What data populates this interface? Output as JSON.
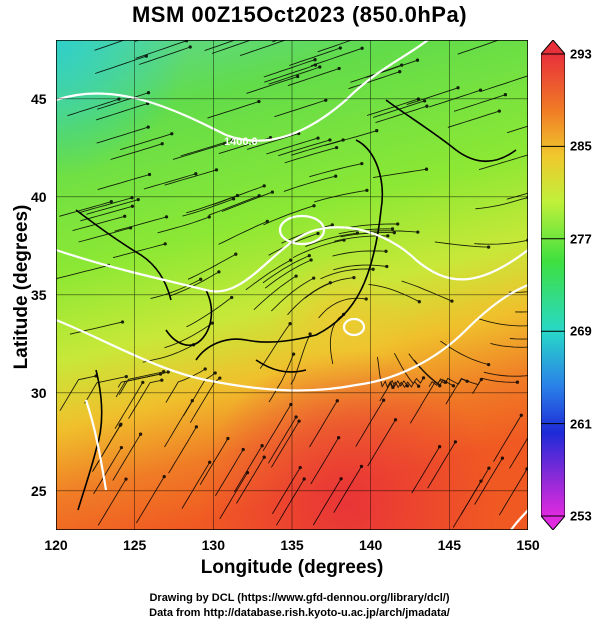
{
  "title": "MSM 00Z15Oct2023 (850.0hPa)",
  "map": {
    "x_axis_label": "Longitude (degrees)",
    "y_axis_label": "Latitude  (degrees)",
    "lon_range": [
      120,
      150
    ],
    "lat_range": [
      23,
      48
    ],
    "lon_ticks": [
      {
        "value": 120,
        "label": "120"
      },
      {
        "value": 125,
        "label": "125"
      },
      {
        "value": 130,
        "label": "130"
      },
      {
        "value": 135,
        "label": "135"
      },
      {
        "value": 140,
        "label": "140"
      },
      {
        "value": 145,
        "label": "145"
      },
      {
        "value": 150,
        "label": "150"
      }
    ],
    "lat_ticks": [
      {
        "value": 25,
        "label": "25"
      },
      {
        "value": 30,
        "label": "30"
      },
      {
        "value": 35,
        "label": "35"
      },
      {
        "value": 40,
        "label": "40"
      },
      {
        "value": 45,
        "label": "45"
      }
    ],
    "contour_label": "1400.0",
    "field": "temperature (K) with streamlines and geopotential height contours",
    "colors": {
      "cold": "#2fd0c8",
      "cool": "#5ce05a",
      "mild": "#9ff03c",
      "warm": "#e8e030",
      "hot": "#f08a28",
      "hottest": "#e8303a",
      "contour": "#ffffff",
      "streamline": "#000000",
      "coast": "#000000"
    }
  },
  "colorbar": {
    "range": [
      253,
      293
    ],
    "ticks": [
      {
        "value": 293,
        "label": "293"
      },
      {
        "value": 285,
        "label": "285"
      },
      {
        "value": 277,
        "label": "277"
      },
      {
        "value": 269,
        "label": "269"
      },
      {
        "value": 261,
        "label": "261"
      },
      {
        "value": 253,
        "label": "253"
      }
    ]
  },
  "footer": {
    "line1": "Drawing by DCL (https://www.gfd-dennou.org/library/dcl/)",
    "line2": "Data from http://database.rish.kyoto-u.ac.jp/arch/jmadata/"
  }
}
